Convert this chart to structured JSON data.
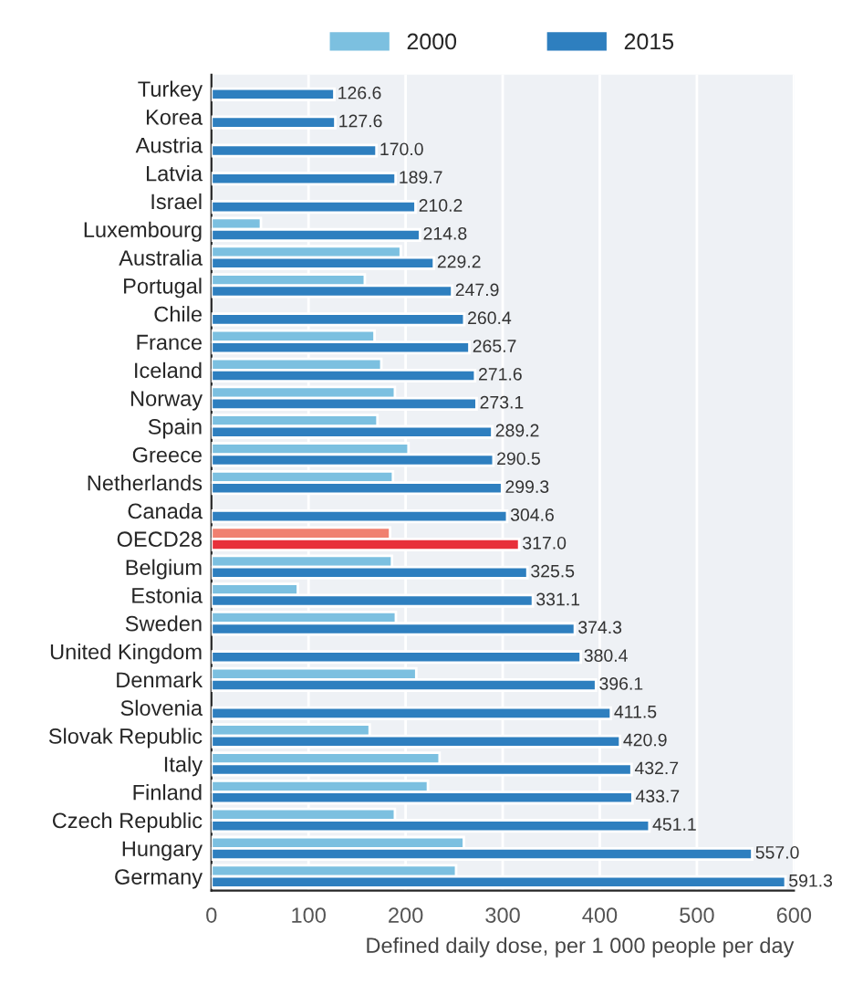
{
  "chart_data": {
    "type": "bar",
    "orientation": "horizontal",
    "xlabel": "Defined daily dose, per 1 000 people per day",
    "categories": [
      "Turkey",
      "Korea",
      "Austria",
      "Latvia",
      "Israel",
      "Luxembourg",
      "Australia",
      "Portugal",
      "Chile",
      "France",
      "Iceland",
      "Norway",
      "Spain",
      "Greece",
      "Netherlands",
      "Canada",
      "OECD28",
      "Belgium",
      "Estonia",
      "Sweden",
      "United Kingdom",
      "Denmark",
      "Slovenia",
      "Slovak Republic",
      "Italy",
      "Finland",
      "Czech Republic",
      "Hungary",
      "Germany"
    ],
    "series": [
      {
        "name": "2000",
        "color": "#7cc0e0",
        "colors": [
          "#7cc0e0",
          "#7cc0e0",
          "#7cc0e0",
          "#7cc0e0",
          "#7cc0e0",
          "#7cc0e0",
          "#7cc0e0",
          "#7cc0e0",
          "#7cc0e0",
          "#7cc0e0",
          "#7cc0e0",
          "#7cc0e0",
          "#7cc0e0",
          "#7cc0e0",
          "#7cc0e0",
          "#7cc0e0",
          "#f08070",
          "#7cc0e0",
          "#7cc0e0",
          "#7cc0e0",
          "#7cc0e0",
          "#7cc0e0",
          "#7cc0e0",
          "#7cc0e0",
          "#7cc0e0",
          "#7cc0e0",
          "#7cc0e0",
          "#7cc0e0",
          "#7cc0e0"
        ],
        "values": [
          null,
          null,
          null,
          null,
          null,
          51,
          195,
          158,
          null,
          168,
          175,
          189,
          171,
          203,
          187,
          null,
          184,
          186,
          89,
          190,
          null,
          211,
          null,
          163,
          235,
          223,
          189,
          260,
          252
        ]
      },
      {
        "name": "2015",
        "color": "#2e7fbf",
        "colors": [
          "#2e7fbf",
          "#2e7fbf",
          "#2e7fbf",
          "#2e7fbf",
          "#2e7fbf",
          "#2e7fbf",
          "#2e7fbf",
          "#2e7fbf",
          "#2e7fbf",
          "#2e7fbf",
          "#2e7fbf",
          "#2e7fbf",
          "#2e7fbf",
          "#2e7fbf",
          "#2e7fbf",
          "#2e7fbf",
          "#e8303a",
          "#2e7fbf",
          "#2e7fbf",
          "#2e7fbf",
          "#2e7fbf",
          "#2e7fbf",
          "#2e7fbf",
          "#2e7fbf",
          "#2e7fbf",
          "#2e7fbf",
          "#2e7fbf",
          "#2e7fbf",
          "#2e7fbf"
        ],
        "values": [
          126.6,
          127.6,
          170.0,
          189.7,
          210.2,
          214.8,
          229.2,
          247.9,
          260.4,
          265.7,
          271.6,
          273.1,
          289.2,
          290.5,
          299.3,
          304.6,
          317.0,
          325.5,
          331.1,
          374.3,
          380.4,
          396.1,
          411.5,
          420.9,
          432.7,
          433.7,
          451.1,
          557.0,
          591.3
        ],
        "value_labels": [
          "126.6",
          "127.6",
          "170.0",
          "189.7",
          "210.2",
          "214.8",
          "229.2",
          "247.9",
          "260.4",
          "265.7",
          "271.6",
          "273.1",
          "289.2",
          "290.5",
          "299.3",
          "304.6",
          "317.0",
          "325.5",
          "331.1",
          "374.3",
          "380.4",
          "396.1",
          "411.5",
          "420.9",
          "432.7",
          "433.7",
          "451.1",
          "557.0",
          "591.3"
        ]
      }
    ],
    "xlim": [
      0,
      600
    ],
    "xticks": [
      0,
      100,
      200,
      300,
      400,
      500,
      600
    ],
    "grid": "x",
    "legend": "top"
  }
}
